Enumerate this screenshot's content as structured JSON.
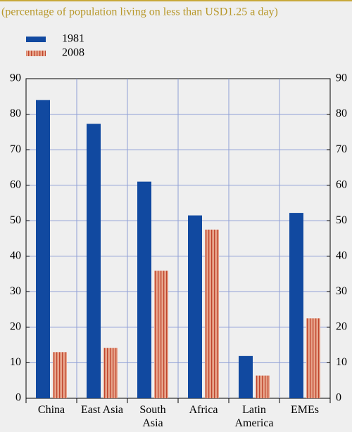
{
  "chart_data": {
    "type": "bar",
    "subtitle": "(percentage of population living on less than USD1.25 a day)",
    "categories": [
      "China",
      "East Asia",
      "South Asia",
      "Africa",
      "Latin America",
      "EMEs"
    ],
    "series": [
      {
        "name": "1981",
        "color": "#1149a0",
        "values": [
          84,
          77.3,
          61,
          51.5,
          11.9,
          52.2
        ]
      },
      {
        "name": "2008",
        "color": "#e7a58c",
        "values": [
          13,
          14.2,
          35.9,
          47.5,
          6.4,
          22.5
        ]
      }
    ],
    "ylim": [
      0,
      90
    ],
    "yticks": [
      0,
      10,
      20,
      30,
      40,
      50,
      60,
      70,
      80,
      90
    ],
    "grid": true
  }
}
